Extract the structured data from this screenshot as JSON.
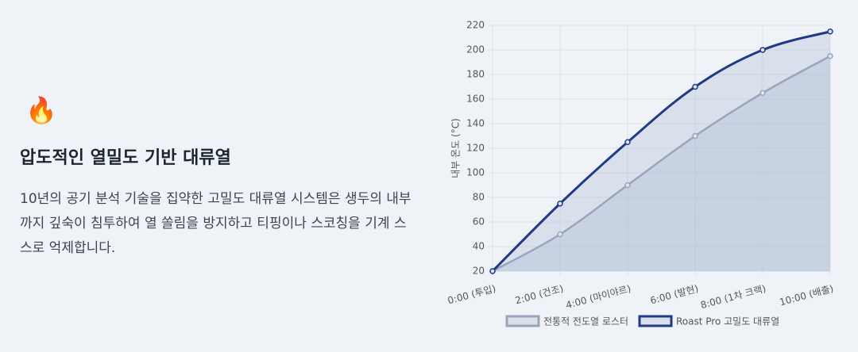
{
  "feature": {
    "icon": "🔥",
    "title": "압도적인 열밀도 기반 대류열",
    "description": "10년의 공기 분석 기술을 집약한 고밀도 대류열 시스템은 생두의 내부까지 깊숙이 침투하여 열 쏠림을 방지하고 티핑이나 스코칭을 기계 스스로 억제합니다."
  },
  "chart_data": {
    "type": "line",
    "y_label": "내부 온도 (°C)",
    "categories": [
      "0:00 (투입)",
      "2:00 (건조)",
      "4:00 (마이야르)",
      "6:00 (발현)",
      "8:00 (1차 크랙)",
      "10:00 (배출)"
    ],
    "series": [
      {
        "name": "전통적 전도열 로스터",
        "color": "#9aa5bb",
        "values": [
          20,
          50,
          90,
          130,
          165,
          195
        ]
      },
      {
        "name": "Roast Pro 고밀도 대류열",
        "color": "#213a87",
        "values": [
          20,
          75,
          125,
          170,
          200,
          215
        ]
      }
    ],
    "ylim": [
      20,
      220
    ],
    "yticks": [
      20,
      40,
      60,
      80,
      100,
      120,
      140,
      160,
      180,
      200,
      220
    ],
    "grid": true,
    "legend": "bottom"
  }
}
